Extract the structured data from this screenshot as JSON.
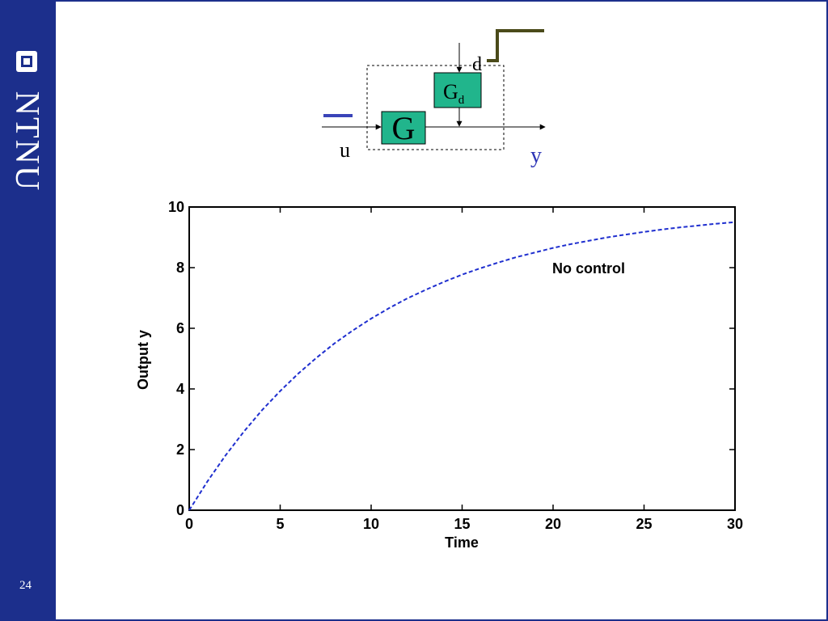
{
  "slide": {
    "page_number": "24",
    "logo_text": "NTNU"
  },
  "diagram": {
    "block_g_label": "G",
    "block_gd_label": "G",
    "block_gd_subscript": "d",
    "input_label": "u",
    "output_label": "y",
    "disturbance_label": "d",
    "input_color": "#3a44b8",
    "output_color": "#2b33b5",
    "block_color": "#21b58c",
    "disturbance_signal_color": "#4a4a1a"
  },
  "chart_data": {
    "type": "line",
    "title": "",
    "xlabel": "Time",
    "ylabel": "Output y",
    "xlim": [
      0,
      30
    ],
    "ylim": [
      0,
      10
    ],
    "xticks": [
      0,
      5,
      10,
      15,
      20,
      25,
      30
    ],
    "yticks": [
      0,
      2,
      4,
      6,
      8,
      10
    ],
    "annotation": "No control",
    "grid": false,
    "series": [
      {
        "line_style": "dashed",
        "color": "#1f2fcf",
        "x": [
          0,
          1,
          2,
          3,
          4,
          5,
          6,
          7,
          8,
          9,
          10,
          11,
          12,
          13,
          14,
          15,
          16,
          17,
          18,
          19,
          20,
          21,
          22,
          23,
          24,
          25,
          26,
          27,
          28,
          29,
          30
        ],
        "y": [
          0,
          0.95,
          1.81,
          2.59,
          3.3,
          3.93,
          4.51,
          5.03,
          5.51,
          5.93,
          6.32,
          6.67,
          6.99,
          7.27,
          7.53,
          7.77,
          7.98,
          8.17,
          8.35,
          8.5,
          8.65,
          8.78,
          8.89,
          9.0,
          9.09,
          9.18,
          9.26,
          9.33,
          9.39,
          9.45,
          9.5
        ]
      }
    ]
  }
}
